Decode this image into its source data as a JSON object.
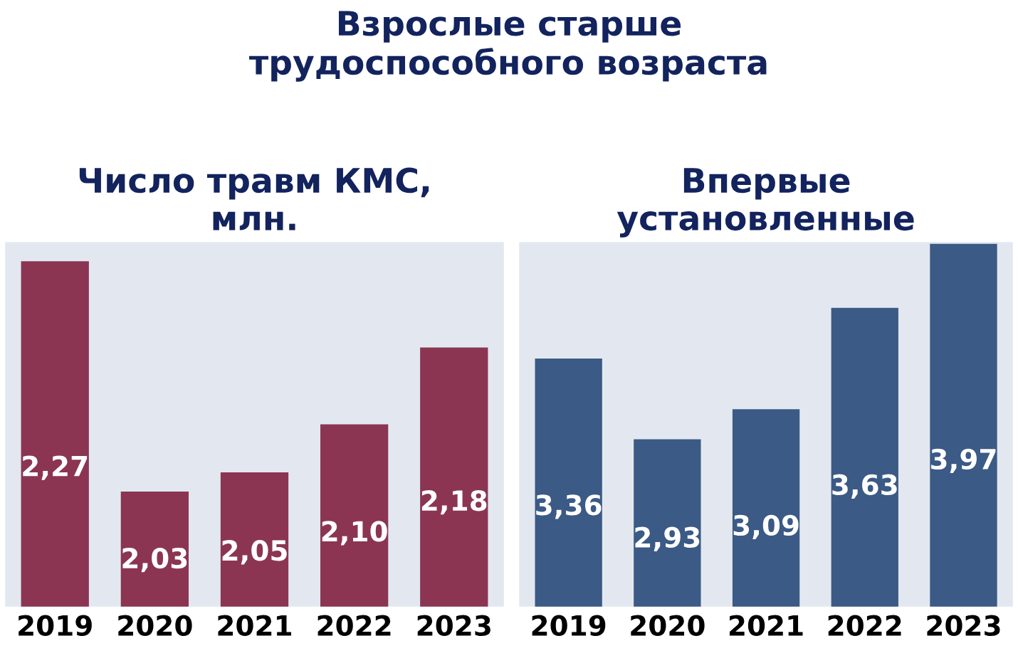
{
  "chart_data": [
    {
      "type": "bar",
      "title": "Число травм КМС,\nмлн.",
      "annotations": [
        "Взрослые старше\nтрудоспособного возраста"
      ],
      "categories": [
        "2019",
        "2020",
        "2021",
        "2022",
        "2023"
      ],
      "values": [
        2.27,
        2.03,
        2.05,
        2.1,
        2.18
      ],
      "value_labels": [
        "2,27",
        "2,03",
        "2,05",
        "2,10",
        "2,18"
      ],
      "color": "#8b3553",
      "ylim": [
        1.91,
        2.29
      ],
      "tick_labels": "x",
      "grid": false,
      "legend": false
    },
    {
      "type": "bar",
      "title": "Впервые\nустановленные",
      "categories": [
        "2019",
        "2020",
        "2021",
        "2022",
        "2023"
      ],
      "values": [
        3.36,
        2.93,
        3.09,
        3.63,
        3.97
      ],
      "value_labels": [
        "3,36",
        "2,93",
        "3,09",
        "3,63",
        "3,97"
      ],
      "color": "#3b5a85",
      "ylim": [
        2.04,
        3.98
      ],
      "tick_labels": "x",
      "grid": false,
      "legend": false
    }
  ]
}
